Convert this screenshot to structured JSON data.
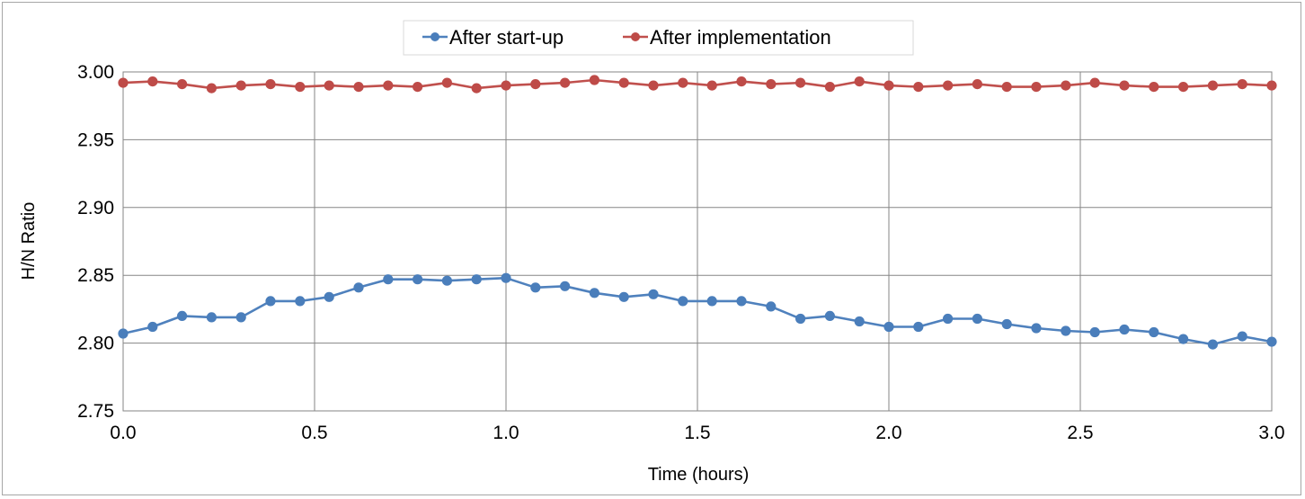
{
  "chart_data": {
    "type": "line",
    "title": "",
    "xlabel": "Time (hours)",
    "ylabel": "H/N Ratio",
    "xlim": [
      0,
      3
    ],
    "ylim": [
      2.75,
      3.0
    ],
    "xticks": [
      "0.0",
      "0.5",
      "1.0",
      "1.5",
      "2.0",
      "2.5",
      "3.0"
    ],
    "yticks": [
      "2.75",
      "2.80",
      "2.85",
      "2.90",
      "2.95",
      "3.00"
    ],
    "grid": true,
    "legend_position": "top",
    "series": [
      {
        "name": "After start-up",
        "color": "#4f81bd",
        "marker_color": "#4a7ebb",
        "x": [
          0.0,
          0.077,
          0.154,
          0.231,
          0.308,
          0.385,
          0.462,
          0.538,
          0.615,
          0.692,
          0.769,
          0.846,
          0.923,
          1.0,
          1.077,
          1.154,
          1.231,
          1.308,
          1.385,
          1.462,
          1.538,
          1.615,
          1.692,
          1.769,
          1.846,
          1.923,
          2.0,
          2.077,
          2.154,
          2.231,
          2.308,
          2.385,
          2.462,
          2.538,
          2.615,
          2.692,
          2.769,
          2.846,
          2.923,
          3.0
        ],
        "y": [
          2.807,
          2.812,
          2.82,
          2.819,
          2.819,
          2.831,
          2.831,
          2.834,
          2.841,
          2.847,
          2.847,
          2.846,
          2.847,
          2.848,
          2.841,
          2.842,
          2.837,
          2.834,
          2.836,
          2.831,
          2.831,
          2.831,
          2.827,
          2.818,
          2.82,
          2.816,
          2.812,
          2.812,
          2.818,
          2.818,
          2.814,
          2.811,
          2.809,
          2.808,
          2.81,
          2.808,
          2.803,
          2.799,
          2.805,
          2.801
        ]
      },
      {
        "name": "After implementation",
        "color": "#c0504d",
        "marker_color": "#be4b48",
        "x": [
          0.0,
          0.077,
          0.154,
          0.231,
          0.308,
          0.385,
          0.462,
          0.538,
          0.615,
          0.692,
          0.769,
          0.846,
          0.923,
          1.0,
          1.077,
          1.154,
          1.231,
          1.308,
          1.385,
          1.462,
          1.538,
          1.615,
          1.692,
          1.769,
          1.846,
          1.923,
          2.0,
          2.077,
          2.154,
          2.231,
          2.308,
          2.385,
          2.462,
          2.538,
          2.615,
          2.692,
          2.769,
          2.846,
          2.923,
          3.0
        ],
        "y": [
          2.992,
          2.993,
          2.991,
          2.988,
          2.99,
          2.991,
          2.989,
          2.99,
          2.989,
          2.99,
          2.989,
          2.992,
          2.988,
          2.99,
          2.991,
          2.992,
          2.994,
          2.992,
          2.99,
          2.992,
          2.99,
          2.993,
          2.991,
          2.992,
          2.989,
          2.993,
          2.99,
          2.989,
          2.99,
          2.991,
          2.989,
          2.989,
          2.99,
          2.992,
          2.99,
          2.989,
          2.989,
          2.99,
          2.991,
          2.99
        ]
      }
    ]
  }
}
